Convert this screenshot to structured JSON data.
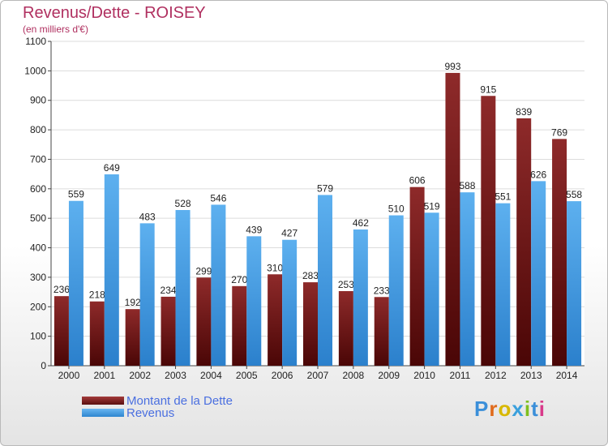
{
  "title": "Revenus/Dette - ROISEY",
  "subtitle": "(en milliers d'€)",
  "legend": {
    "debt_label": "Montant de la Dette",
    "revenue_label": "Revenus"
  },
  "logo": {
    "text": "Proxiti",
    "letters": [
      "P",
      "r",
      "o",
      "x",
      "i",
      "t",
      "i"
    ],
    "colors": [
      "#3b8fd9",
      "#e06a1b",
      "#d8b800",
      "#3aa0dc",
      "#7fbf1f",
      "#3b8fd9",
      "#d83a8a"
    ]
  },
  "colors": {
    "debt": "#7a1a1a",
    "revenue": "#4aa3e8",
    "title": "#b03060",
    "legend_text": "#4a6fe0"
  },
  "chart_data": {
    "type": "bar",
    "title": "Revenus/Dette - ROISEY",
    "ylabel": "(en milliers d'€)",
    "xlabel": "",
    "ylim": [
      0,
      1100
    ],
    "yticks": [
      0,
      100,
      200,
      300,
      400,
      500,
      600,
      700,
      800,
      900,
      1000,
      1100
    ],
    "grid": true,
    "legend_position": "bottom-left",
    "categories": [
      "2000",
      "2001",
      "2002",
      "2003",
      "2004",
      "2005",
      "2006",
      "2007",
      "2008",
      "2009",
      "2010",
      "2011",
      "2012",
      "2013",
      "2014"
    ],
    "series": [
      {
        "name": "Montant de la Dette",
        "values": [
          236,
          218,
          192,
          234,
          299,
          270,
          310,
          283,
          253,
          233,
          606,
          993,
          915,
          839,
          769
        ]
      },
      {
        "name": "Revenus",
        "values": [
          559,
          649,
          483,
          528,
          546,
          439,
          427,
          579,
          462,
          510,
          519,
          588,
          551,
          626,
          558
        ]
      }
    ]
  }
}
